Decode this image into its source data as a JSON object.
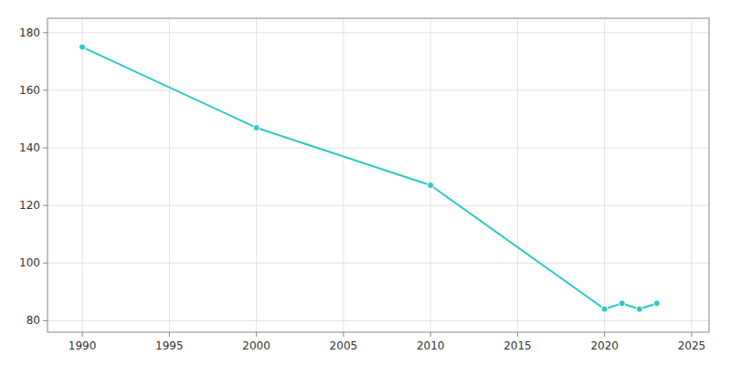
{
  "chart_data": {
    "type": "line",
    "x": [
      1990,
      2000,
      2010,
      2020,
      2021,
      2022,
      2023
    ],
    "values": [
      175,
      147,
      127,
      84,
      86,
      84,
      86
    ],
    "color": "#2ec8c8",
    "marker": "circle",
    "xlim": [
      1988,
      2026
    ],
    "ylim": [
      76,
      185
    ],
    "xticks": [
      1990,
      1995,
      2000,
      2005,
      2010,
      2015,
      2020,
      2025
    ],
    "yticks": [
      80,
      100,
      120,
      140,
      160,
      180
    ],
    "grid": true
  }
}
